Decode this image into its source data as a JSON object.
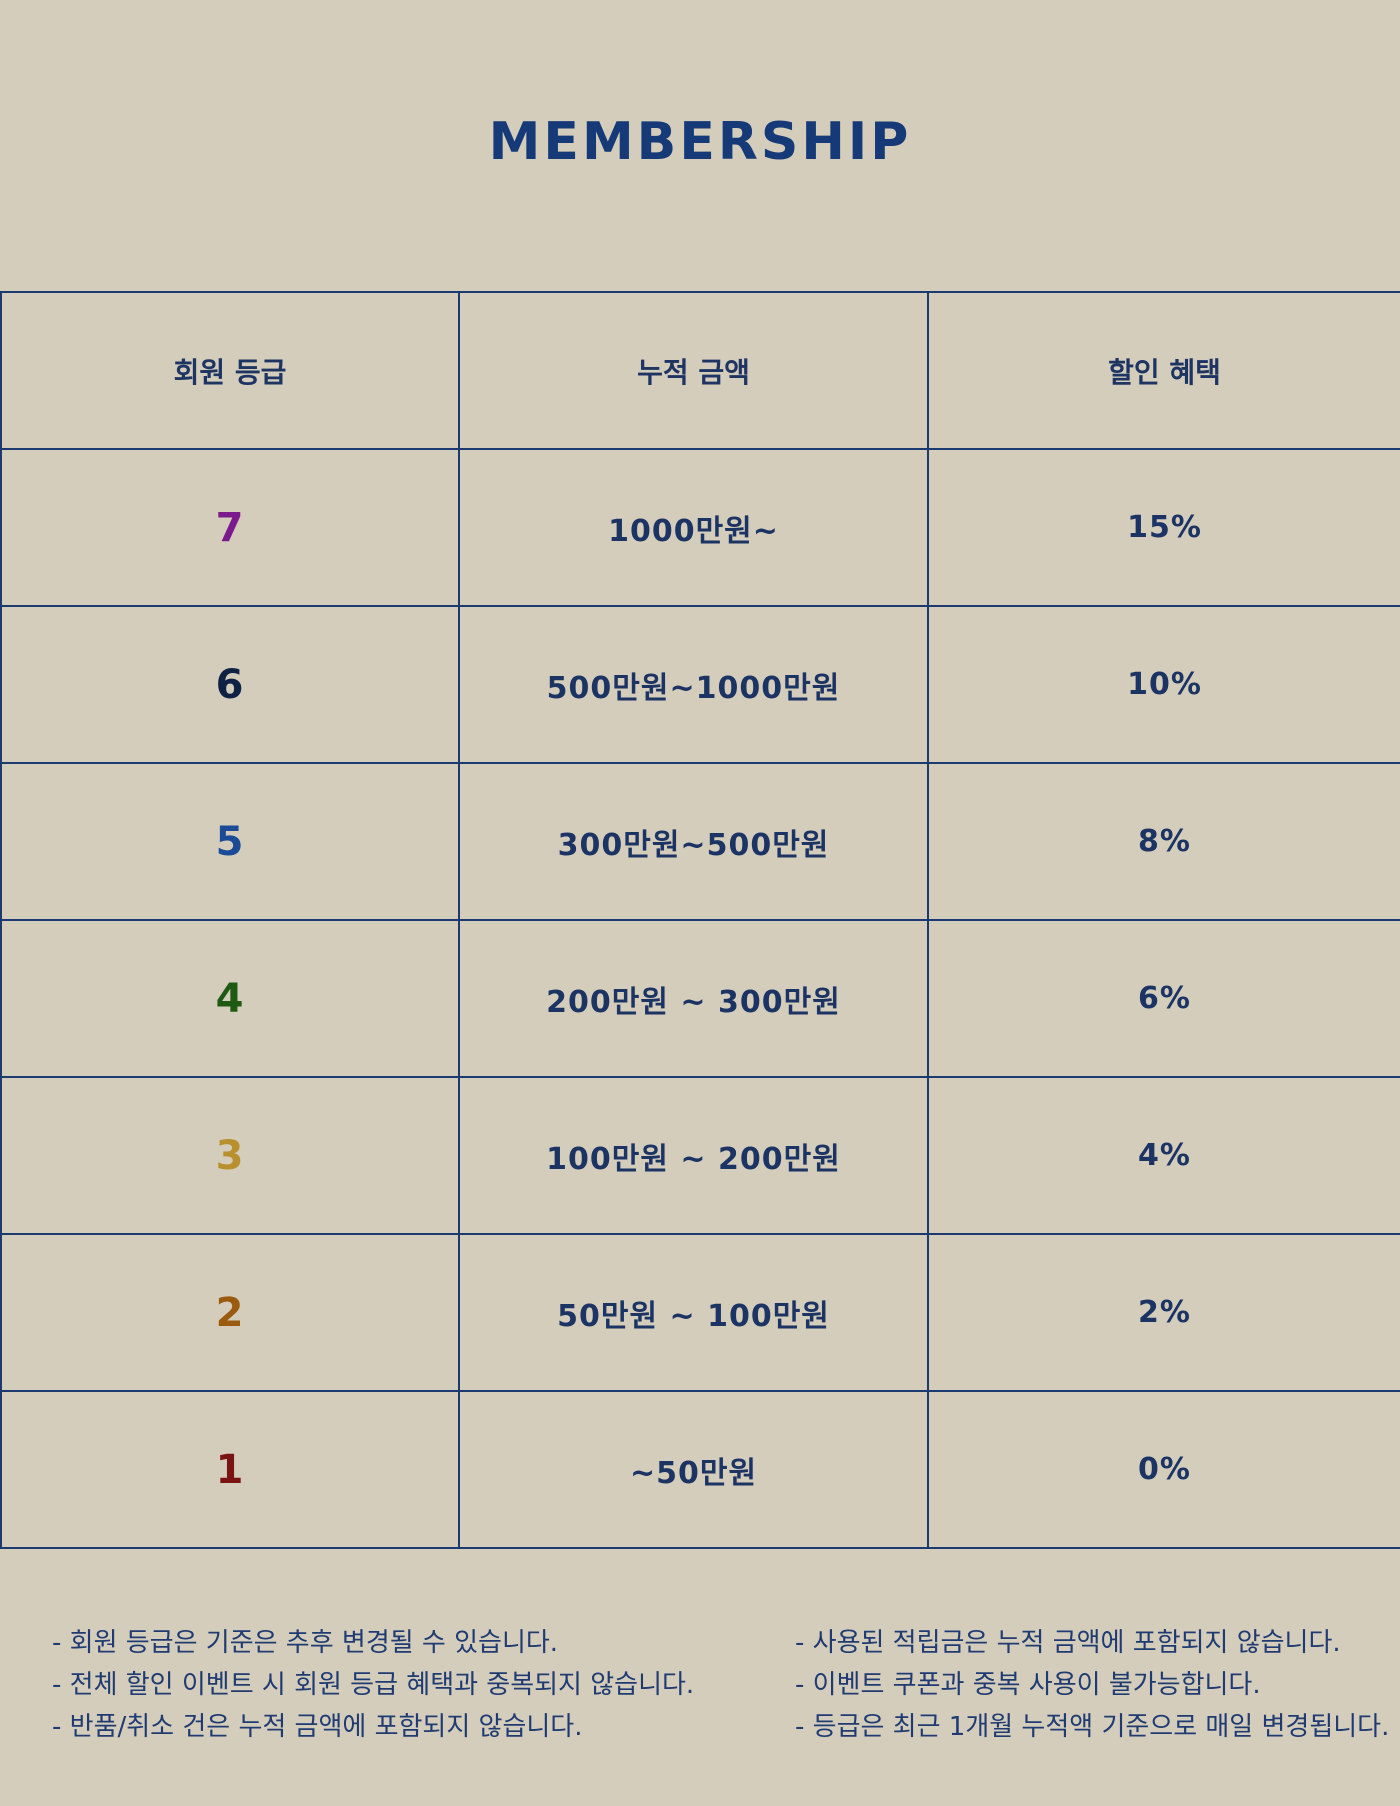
{
  "title": "MEMBERSHIP",
  "table": {
    "headers": [
      "회원 등급",
      "누적 금액",
      "할인 혜택"
    ],
    "rows": [
      {
        "grade": "7",
        "grade_color": "#7a1a8c",
        "amount": "1000만원~",
        "discount": "15%"
      },
      {
        "grade": "6",
        "grade_color": "#0f2244",
        "amount": "500만원~1000만원",
        "discount": "10%"
      },
      {
        "grade": "5",
        "grade_color": "#1b4a96",
        "amount": "300만원~500만원",
        "discount": "8%"
      },
      {
        "grade": "4",
        "grade_color": "#1e5a12",
        "amount": "200만원 ~ 300만원",
        "discount": "6%"
      },
      {
        "grade": "3",
        "grade_color": "#b8902e",
        "amount": "100만원 ~ 200만원",
        "discount": "4%"
      },
      {
        "grade": "2",
        "grade_color": "#9a5a10",
        "amount": "50만원 ~ 100만원",
        "discount": "2%"
      },
      {
        "grade": "1",
        "grade_color": "#7a1414",
        "amount": "~50만원",
        "discount": "0%"
      }
    ]
  },
  "notes_left": [
    "- 회원 등급은 기준은 추후 변경될 수 있습니다.",
    "- 전체 할인 이벤트 시 회원 등급 혜택과 중복되지 않습니다.",
    "- 반품/취소 건은 누적 금액에 포함되지 않습니다."
  ],
  "notes_right": [
    "- 사용된 적립금은 누적 금액에 포함되지 않습니다.",
    "- 이벤트 쿠폰과 중복 사용이 불가능합니다.",
    "- 등급은 최근 1개월 누적액 기준으로 매일 변경됩니다."
  ],
  "colors": {
    "background": "#d5cdbc",
    "primary": "#163a78"
  }
}
